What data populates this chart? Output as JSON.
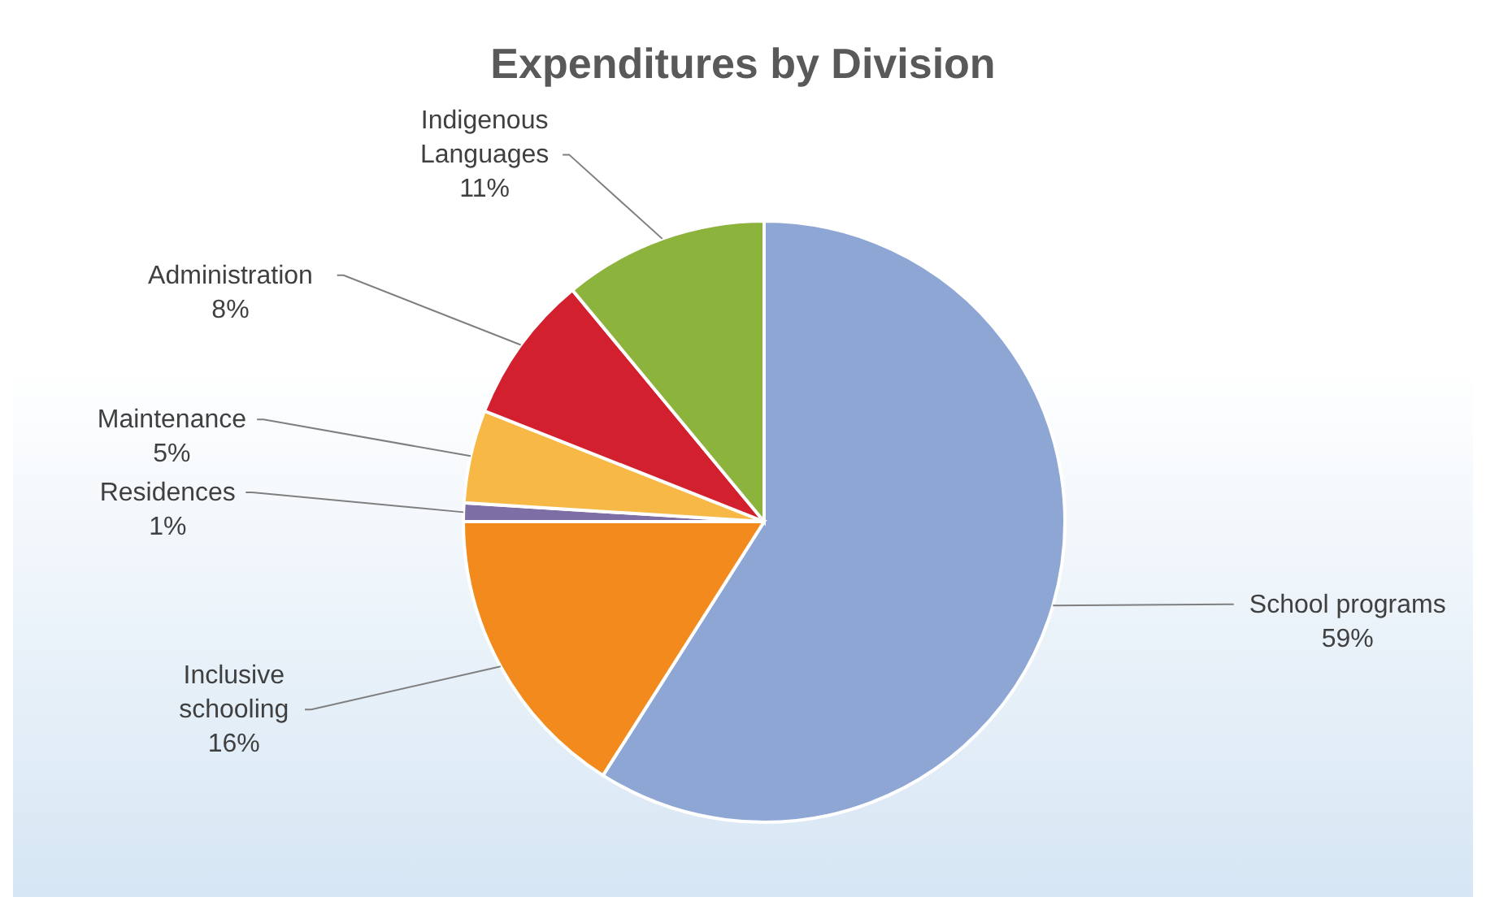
{
  "chart_data": {
    "type": "pie",
    "title": "Expenditures by Division",
    "categories": [
      "School programs",
      "Inclusive schooling",
      "Residences",
      "Maintenance",
      "Administration",
      "Indigenous Languages"
    ],
    "values": [
      59,
      16,
      1,
      5,
      8,
      11
    ],
    "value_labels": [
      "59%",
      "16%",
      "1%",
      "5%",
      "8%",
      "11%"
    ],
    "colors": [
      "#8ea6d4",
      "#f28a1e",
      "#7e6ea6",
      "#f8b845",
      "#d2202f",
      "#8cb33b"
    ]
  }
}
